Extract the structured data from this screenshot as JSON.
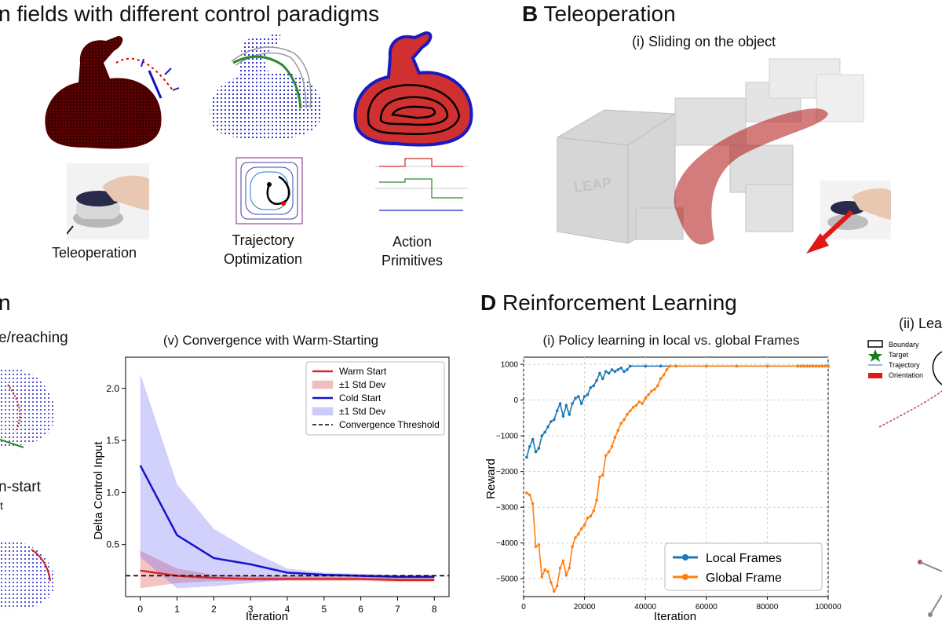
{
  "panels": {
    "A": {
      "title": "n fields with different control paradigms",
      "captions": {
        "teleop": "Teleoperation",
        "trajopt": "Trajectory\nOptimization",
        "action": "Action\nPrimitives"
      }
    },
    "B": {
      "letter": "B",
      "title": "Teleoperation",
      "subtitle": "(i) Sliding on the object",
      "robot_logo": "LEAP"
    },
    "C": {
      "title": "n",
      "sub1": "e/reaching",
      "sub2": "n-start",
      "sub2b": "t"
    },
    "D": {
      "letter": "D",
      "title": "Reinforcement Learning"
    },
    "E": {
      "subtitle": "(ii) Lea",
      "legend": [
        "Boundary",
        "Target",
        "Trajectory",
        "Orientation"
      ]
    }
  },
  "colors": {
    "red": "#d62728",
    "blue": "#1f77b4",
    "orange": "#ff7f0e",
    "darkred": "#b00000",
    "navy": "#2020c8",
    "green": "#2a8a2a"
  },
  "chart_data": [
    {
      "type": "line",
      "title": "(v) Convergence with  Warm-Starting",
      "xlabel": "Iteration",
      "ylabel": "Delta Control Input",
      "xlim": [
        -0.4,
        8.4
      ],
      "ylim": [
        0.0,
        2.3
      ],
      "xticks": [
        0,
        1,
        2,
        3,
        4,
        5,
        6,
        7,
        8
      ],
      "yticks": [
        0.5,
        1.0,
        1.5,
        2.0
      ],
      "x": [
        0,
        1,
        2,
        3,
        4,
        5,
        6,
        7,
        8
      ],
      "grid": false,
      "legend_position": "top-right",
      "series": [
        {
          "name": "Warm Start",
          "kind": "line",
          "color": "#d62728",
          "values": [
            0.25,
            0.2,
            0.18,
            0.17,
            0.17,
            0.17,
            0.17,
            0.16,
            0.16
          ]
        },
        {
          "name": "±1 Std Dev",
          "kind": "band",
          "color": "#d62728",
          "upper": [
            0.44,
            0.27,
            0.21,
            0.2,
            0.2,
            0.2,
            0.2,
            0.19,
            0.19
          ],
          "lower": [
            0.08,
            0.13,
            0.15,
            0.15,
            0.15,
            0.15,
            0.15,
            0.14,
            0.14
          ]
        },
        {
          "name": "Cold Start",
          "kind": "line",
          "color": "#1515c8",
          "values": [
            1.26,
            0.59,
            0.37,
            0.31,
            0.23,
            0.21,
            0.2,
            0.19,
            0.19
          ]
        },
        {
          "name": "±1 Std Dev",
          "kind": "band",
          "color": "#5a5af0",
          "upper": [
            2.14,
            1.08,
            0.65,
            0.44,
            0.27,
            0.23,
            0.22,
            0.21,
            0.21
          ],
          "lower": [
            0.38,
            0.08,
            0.1,
            0.13,
            0.16,
            0.17,
            0.17,
            0.17,
            0.17
          ]
        },
        {
          "name": "Convergence Threshold",
          "kind": "threshold",
          "color": "#000000",
          "value": 0.2
        }
      ]
    },
    {
      "type": "line",
      "title": "(i) Policy learning in local vs. global Frames",
      "xlabel": "Iteration",
      "ylabel": "Reward",
      "xlim": [
        0,
        100000
      ],
      "ylim": [
        -5500,
        1200
      ],
      "xticks": [
        0,
        20000,
        40000,
        60000,
        80000,
        100000
      ],
      "yticks": [
        -5000,
        -4000,
        -3000,
        -2000,
        -1000,
        0,
        1000
      ],
      "grid": true,
      "legend_position": "bottom-right",
      "series": [
        {
          "name": "Local Frames",
          "color": "#1f77b4",
          "x": [
            1000,
            2000,
            3000,
            4000,
            5000,
            6000,
            7000,
            8000,
            9000,
            10000,
            11000,
            12000,
            13000,
            14000,
            15000,
            16000,
            17000,
            18000,
            19000,
            20000,
            21000,
            22000,
            23000,
            24000,
            25000,
            26000,
            27000,
            28000,
            29000,
            30000,
            31000,
            32000,
            33000,
            34000,
            35000,
            40000,
            45000,
            50000,
            60000,
            70000,
            80000,
            90000,
            100000
          ],
          "y": [
            -1600,
            -1300,
            -1100,
            -1450,
            -1350,
            -1000,
            -900,
            -750,
            -600,
            -550,
            -300,
            -100,
            -450,
            -150,
            -400,
            -100,
            50,
            100,
            -100,
            100,
            150,
            350,
            400,
            550,
            750,
            600,
            800,
            750,
            850,
            800,
            850,
            900,
            800,
            850,
            950,
            950,
            950,
            950,
            950,
            950,
            950,
            950,
            950
          ]
        },
        {
          "name": "Global Frame",
          "color": "#ff7f0e",
          "x": [
            1000,
            2000,
            3000,
            4000,
            5000,
            6000,
            7000,
            8000,
            9000,
            10000,
            11000,
            12000,
            13000,
            14000,
            15000,
            16000,
            17000,
            18000,
            19000,
            20000,
            21000,
            22000,
            23000,
            24000,
            25000,
            26000,
            27000,
            28000,
            29000,
            30000,
            31000,
            32000,
            33000,
            34000,
            35000,
            36000,
            37000,
            38000,
            39000,
            40000,
            41000,
            42000,
            43000,
            44000,
            45000,
            46000,
            47000,
            48000,
            50000,
            60000,
            70000,
            80000,
            90000,
            100000
          ],
          "y": [
            -2600,
            -2650,
            -2900,
            -4100,
            -4050,
            -4950,
            -4750,
            -4800,
            -5100,
            -5350,
            -5200,
            -4700,
            -4500,
            -4900,
            -4700,
            -4100,
            -3850,
            -3750,
            -3600,
            -3500,
            -3300,
            -3250,
            -3100,
            -2800,
            -2150,
            -2100,
            -1550,
            -1450,
            -1300,
            -1050,
            -850,
            -650,
            -550,
            -400,
            -300,
            -200,
            -150,
            -50,
            -100,
            50,
            150,
            250,
            300,
            400,
            600,
            700,
            850,
            950,
            950,
            950,
            950,
            950,
            950,
            950
          ]
        }
      ]
    }
  ]
}
